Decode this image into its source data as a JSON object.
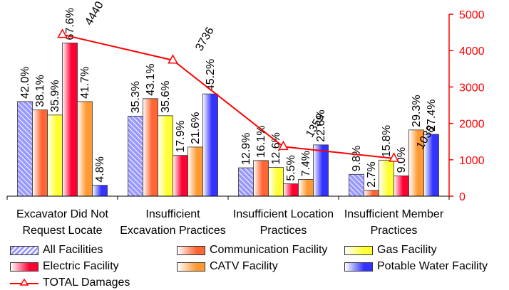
{
  "chart_data": {
    "type": "bar",
    "categories": [
      [
        "Excavator Did Not",
        "Request Locate"
      ],
      [
        "Insufficient",
        "Excavation Practices"
      ],
      [
        "Insufficient Location",
        "Practices"
      ],
      [
        "Insufficient Member",
        "Practices"
      ]
    ],
    "series": [
      {
        "name": "All Facilities",
        "values": [
          2600,
          2200,
          780,
          600
        ],
        "labels": [
          "42.0%",
          "35.3%",
          "12.9%",
          "9.8%"
        ],
        "color": "#9999ff",
        "pattern": "hatch"
      },
      {
        "name": "Communication Facility",
        "values": [
          2370,
          2680,
          980,
          160
        ],
        "labels": [
          "38.1%",
          "43.1%",
          "16.1%",
          "2.7%"
        ],
        "color": "#ff6633"
      },
      {
        "name": "Gas Facility",
        "values": [
          2230,
          2210,
          790,
          990
        ],
        "labels": [
          "35.9%",
          "35.6%",
          "12.6%",
          "15.8%"
        ],
        "color": "#ffff33"
      },
      {
        "name": "Electric Facility",
        "values": [
          4210,
          1120,
          340,
          560
        ],
        "labels": [
          "67.6%",
          "17.9%",
          "5.5%",
          "9.0%"
        ],
        "color": "#ff0033"
      },
      {
        "name": "CATV Facility",
        "values": [
          2600,
          1350,
          460,
          1820
        ],
        "labels": [
          "41.7%",
          "21.6%",
          "7.4%",
          "29.3%"
        ],
        "color": "#ff9933"
      },
      {
        "name": "Potable Water Facility",
        "values": [
          300,
          2810,
          1410,
          1700
        ],
        "labels": [
          "4.8%",
          "45.2%",
          "22.6%",
          "27.4%"
        ],
        "color": "#3333ff"
      }
    ],
    "line": {
      "name": "TOTAL Damages",
      "values": [
        4440,
        3736,
        1359,
        1038
      ],
      "labels": [
        "4440",
        "3736",
        "1359",
        "1038"
      ],
      "color": "#ff0000"
    },
    "y_right": {
      "min": 0,
      "max": 5000,
      "ticks": [
        "0",
        "1000",
        "2000",
        "3000",
        "4000",
        "5000"
      ],
      "color": "#ff0000"
    },
    "grid": false,
    "legend_position": "bottom"
  }
}
